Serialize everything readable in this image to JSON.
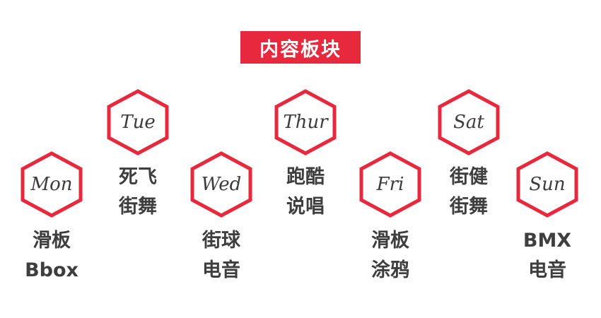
{
  "title": "内容板块",
  "colors": {
    "accent": "#e8283c",
    "text": "#3c3c3c",
    "background": "#ffffff"
  },
  "days": [
    {
      "day": "Mon",
      "activities": [
        "滑板",
        "Bbox"
      ]
    },
    {
      "day": "Tue",
      "activities": [
        "死飞",
        "街舞"
      ]
    },
    {
      "day": "Wed",
      "activities": [
        "街球",
        "电音"
      ]
    },
    {
      "day": "Thur",
      "activities": [
        "跑酷",
        "说唱"
      ]
    },
    {
      "day": "Fri",
      "activities": [
        "滑板",
        "涂鸦"
      ]
    },
    {
      "day": "Sat",
      "activities": [
        "街健",
        "街舞"
      ]
    },
    {
      "day": "Sun",
      "activities": [
        "BMX",
        "电音"
      ]
    }
  ]
}
